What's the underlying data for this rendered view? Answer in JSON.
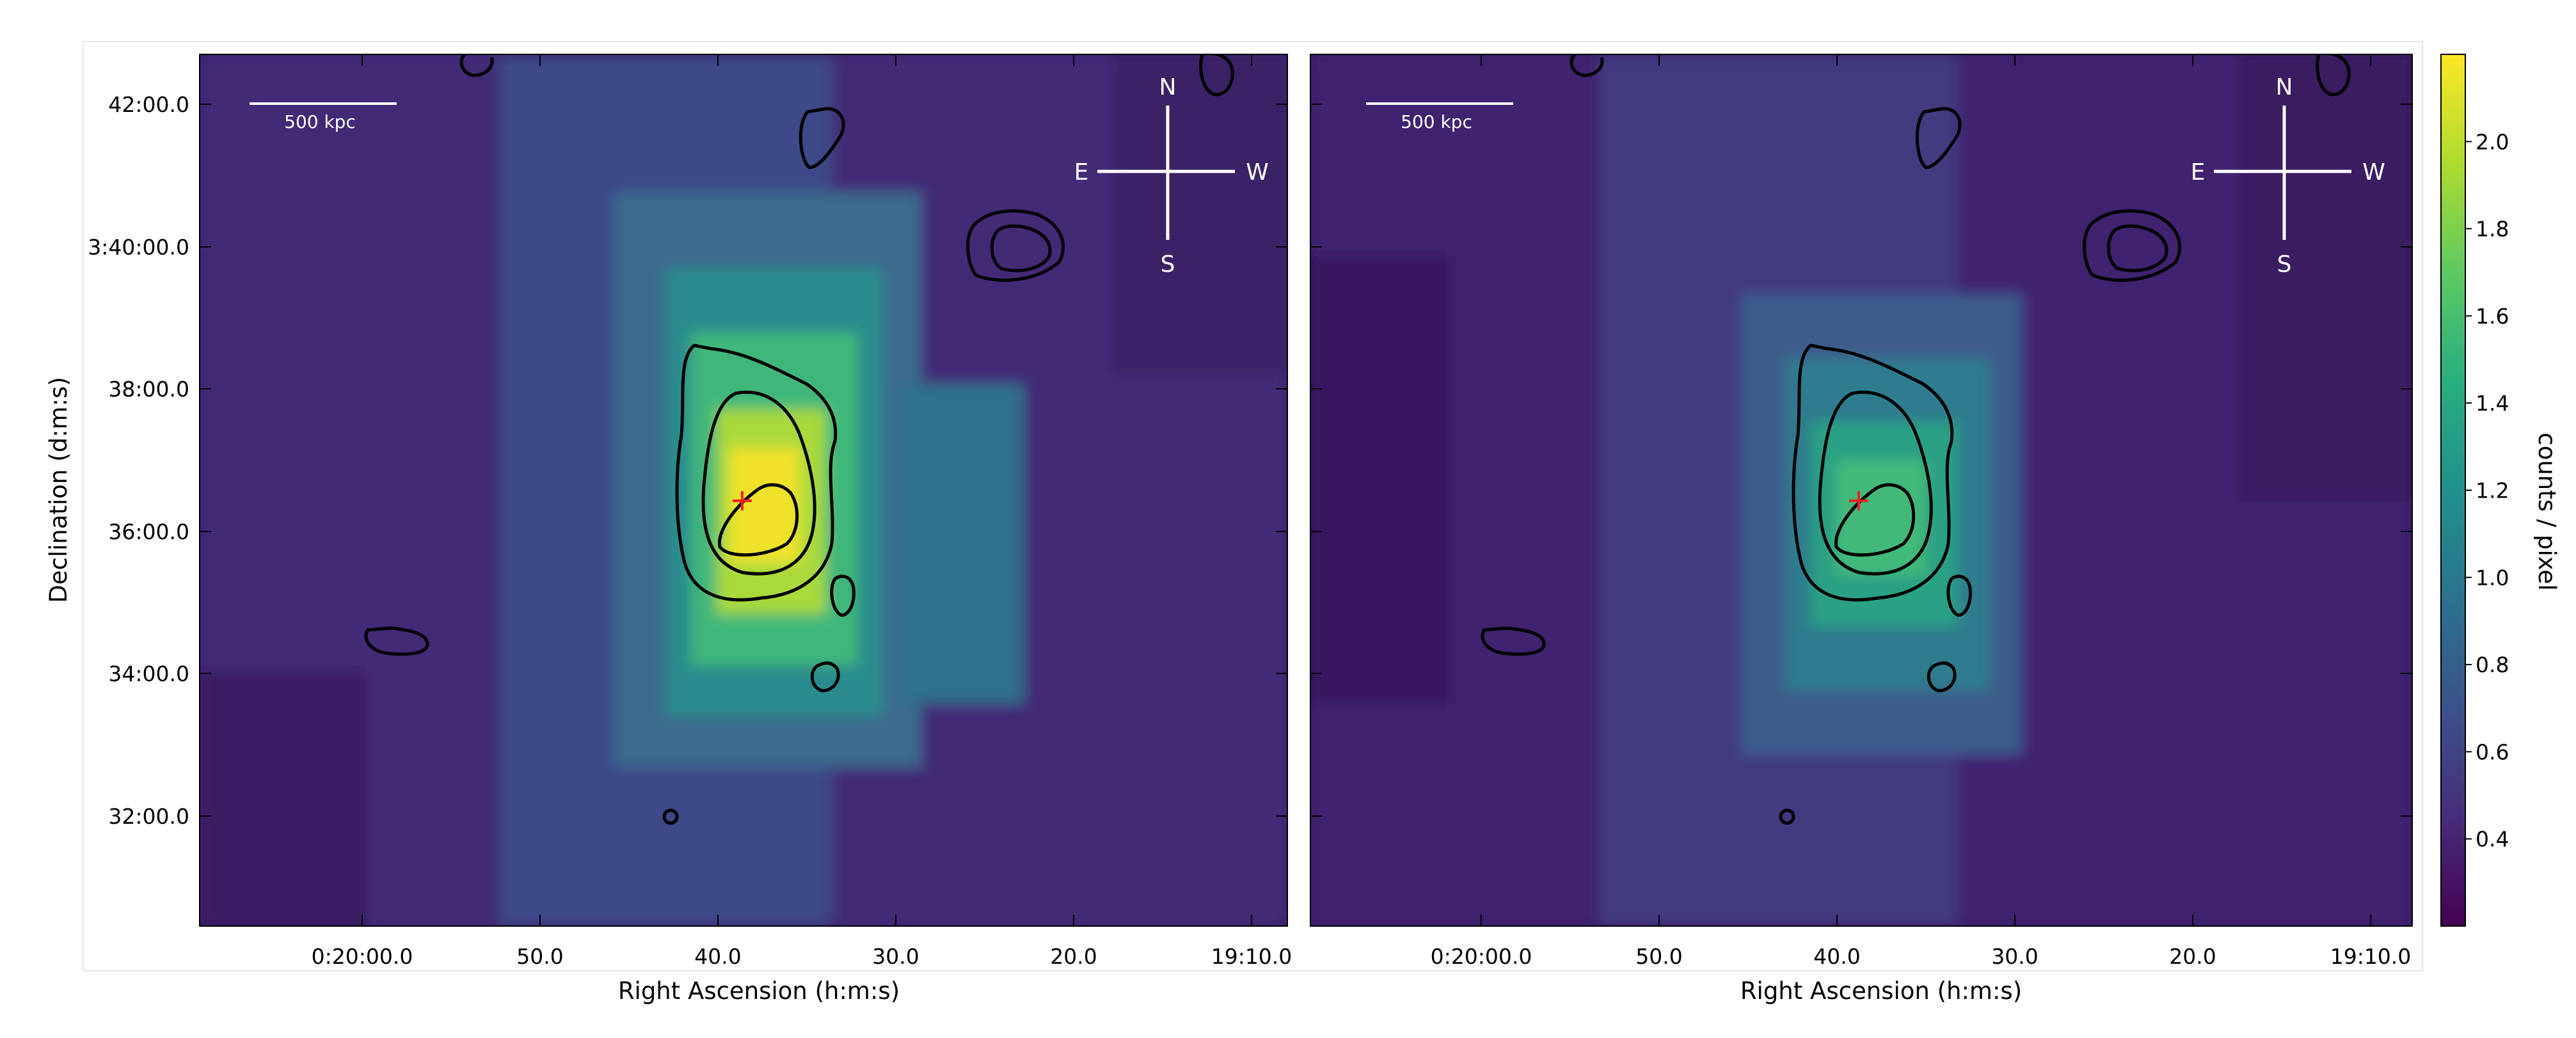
{
  "chart_data": [
    {
      "type": "heatmap",
      "panel": "left",
      "xlabel": "Right Ascension (h:m:s)",
      "ylabel": "Declination (d:m:s)",
      "xticks": [
        "0:20:00.0",
        "50.0",
        "40.0",
        "30.0",
        "20.0",
        "19:10.0"
      ],
      "yticks": [
        "42:00.0",
        "3:40:00.0",
        "38:00.0",
        "36:00.0",
        "34:00.0",
        "32:00.0"
      ],
      "scalebar_label": "500 kpc",
      "compass": {
        "N": "N",
        "S": "S",
        "E": "E",
        "W": "W"
      },
      "peak_counts_per_pixel": 2.2,
      "marker": "red cross at X-ray peak",
      "contours": "black contours",
      "grid": false
    },
    {
      "type": "heatmap",
      "panel": "right",
      "xlabel": "Right Ascension (h:m:s)",
      "xticks": [
        "0:20:00.0",
        "50.0",
        "40.0",
        "30.0",
        "20.0",
        "19:10.0"
      ],
      "scalebar_label": "500 kpc",
      "compass": {
        "N": "N",
        "S": "S",
        "E": "E",
        "W": "W"
      },
      "peak_counts_per_pixel": 1.5,
      "marker": "red cross at X-ray peak",
      "contours": "black contours",
      "grid": false
    }
  ],
  "colorbar": {
    "label": "counts / pixel",
    "ticks": [
      "2.0",
      "1.8",
      "1.6",
      "1.4",
      "1.2",
      "1.0",
      "0.8",
      "0.6",
      "0.4"
    ],
    "range": [
      0.2,
      2.2
    ],
    "colormap": "viridis"
  },
  "colors": {
    "marker": "#ff2020",
    "contour": "#000000",
    "annotation": "#ffffff"
  }
}
